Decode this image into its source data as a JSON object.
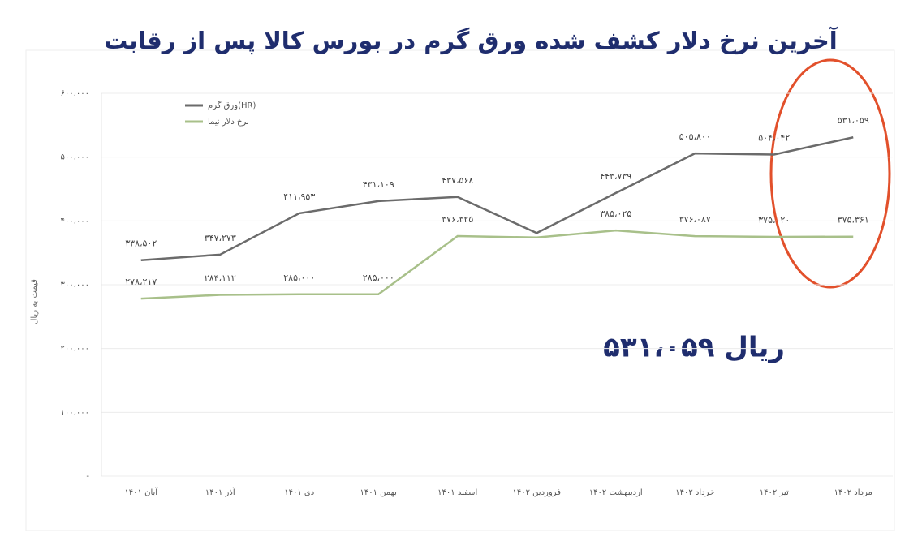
{
  "chart_data": {
    "type": "line",
    "title": "آخرین نرخ دلار کشف شده ورق گرم  در بورس کالا پس از رقابت",
    "y_label": "قیمت به ریال",
    "annotation": "۵۳۱،۰۵۹ ریال",
    "categories": [
      "آبان ۱۴۰۱",
      "آذر ۱۴۰۱",
      "دی ۱۴۰۱",
      "بهمن ۱۴۰۱",
      "اسفند ۱۴۰۱",
      "فروردین ۱۴۰۲",
      "اردیبهشت ۱۴۰۲",
      "خرداد ۱۴۰۲",
      "تیر ۱۴۰۲",
      "مرداد ۱۴۰۲"
    ],
    "series": [
      {
        "name": "ورق گرم(HR)",
        "color": "#6b6b6b",
        "values": [
          338502,
          347273,
          411953,
          431109,
          437568,
          381000,
          443739,
          505800,
          504042,
          531059
        ],
        "value_labels": [
          "۳۳۸،۵۰۲",
          "۳۴۷،۲۷۳",
          "۴۱۱،۹۵۳",
          "۴۳۱،۱۰۹",
          "۴۳۷،۵۶۸",
          null,
          "۴۴۳،۷۳۹",
          "۵۰۵،۸۰۰",
          "۵۰۴،۰۴۲",
          "۵۳۱،۰۵۹"
        ]
      },
      {
        "name": "نرخ دلار نیما",
        "color": "#a8c08a",
        "values": [
          278217,
          284112,
          285000,
          285000,
          376325,
          374000,
          385025,
          376087,
          375020,
          375361
        ],
        "value_labels": [
          "۲۷۸،۲۱۷",
          "۲۸۴،۱۱۲",
          "۲۸۵،۰۰۰",
          "۲۸۵،۰۰۰",
          "۳۷۶،۳۲۵",
          null,
          "۳۸۵،۰۲۵",
          "۳۷۶،۰۸۷",
          "۳۷۵،۰۲۰",
          "۳۷۵،۳۶۱"
        ]
      }
    ],
    "ylim": [
      0,
      600000
    ],
    "yticks": [
      {
        "value": 0,
        "label": "-"
      },
      {
        "value": 100000,
        "label": "۱۰۰،۰۰۰"
      },
      {
        "value": 200000,
        "label": "۲۰۰،۰۰۰"
      },
      {
        "value": 300000,
        "label": "۳۰۰،۰۰۰"
      },
      {
        "value": 400000,
        "label": "۴۰۰،۰۰۰"
      },
      {
        "value": 500000,
        "label": "۵۰۰،۰۰۰"
      },
      {
        "value": 600000,
        "label": "۶۰۰،۰۰۰"
      }
    ],
    "grid": true,
    "legend": "top-left"
  }
}
